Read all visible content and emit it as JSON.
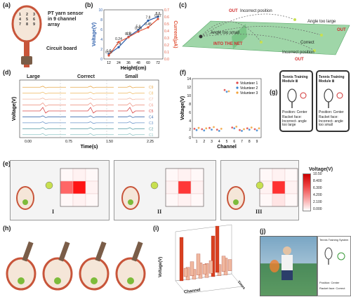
{
  "panels": {
    "a": {
      "label": "(a)",
      "sensor_text": "PT yarn sensor in 9 channel array",
      "circuit_text": "Circuit board",
      "channels": [
        "1",
        "2",
        "3",
        "4",
        "5",
        "6",
        "7",
        "8",
        "9"
      ]
    },
    "b": {
      "label": "(b)"
    },
    "c": {
      "label": "(c)",
      "out1": "OUT",
      "incorrect1": "Incorrect position",
      "angle_small": "Angle too small",
      "into_net": "INTO THE NET",
      "angle_large": "Angle too large",
      "out2": "OUT",
      "correct": "Correct",
      "incorrect2": "Incorrect position",
      "out3": "OUT"
    },
    "d": {
      "label": "(d)",
      "groups": [
        "Large",
        "Correct",
        "Small"
      ]
    },
    "f": {
      "label": "(f)"
    },
    "g": {
      "label": "(g)",
      "module": "Tennis Training Module Ⅲ",
      "position": "Position: Center",
      "face_large": "Racket face: Incorrect- angle too large",
      "face_small": "Racket face: Incorrect- angle too small"
    },
    "e": {
      "label": "(e)",
      "roman": [
        "I",
        "II",
        "III"
      ],
      "colorbar_title": "Voltage(V)",
      "colorbar_ticks": [
        "10.50",
        "8.400",
        "6.300",
        "4.200",
        "2.100",
        "0.000"
      ]
    },
    "h": {
      "label": "(h)"
    },
    "i": {
      "label": "(i)",
      "zlabel": "Voltage(V)",
      "xlabel": "Channel",
      "ylabel": "Times"
    },
    "j": {
      "label": "(j)",
      "app_title": "Tennis Training System",
      "position": "Position: Center",
      "face": "Racket face: Correct"
    }
  },
  "chart_data": [
    {
      "id": "b",
      "type": "line",
      "x": [
        12,
        24,
        36,
        48,
        60,
        72
      ],
      "xlabel": "Height(cm)",
      "ylabel": "Voltage(V)",
      "ylabel2": "Current(μA)",
      "xticks": [
        "12",
        "24",
        "36",
        "48",
        "60",
        "72"
      ],
      "series": [
        {
          "name": "Voltage",
          "axis": "left",
          "color": "#2a5caa",
          "values": [
            1.0,
            2.4,
            4.5,
            5.9,
            7.8,
            8.6
          ],
          "labels": [
            "1.0",
            "2.4",
            "4.5",
            "5.9",
            "7.8",
            "8.6"
          ]
        },
        {
          "name": "Current",
          "axis": "right",
          "color": "#e0553a",
          "values": [
            0.05,
            0.24,
            0.31,
            0.39,
            0.45,
            0.57
          ],
          "labels": [
            "0.05",
            "0.24",
            "0.31",
            "0.39",
            "0.45",
            "0.57"
          ]
        }
      ],
      "ylim": [
        0,
        10
      ],
      "y2lim": [
        0,
        0.7
      ],
      "yticks": [
        "0",
        "2",
        "4",
        "6",
        "8",
        "10"
      ],
      "y2ticks": [
        "0.0",
        "0.1",
        "0.2",
        "0.3",
        "0.4",
        "0.5",
        "0.6",
        "0.7"
      ]
    },
    {
      "id": "d",
      "type": "line",
      "xlabel": "Time(s)",
      "ylabel": "Voltage(V)",
      "xticks": [
        "0.00",
        "0.75",
        "1.50",
        "2.25"
      ],
      "channels": [
        "C9",
        "C8",
        "C7",
        "C6",
        "C5",
        "C4",
        "C3",
        "C2",
        "C1"
      ],
      "colors": [
        "#e8a84a",
        "#f0c070",
        "#f3b9a0",
        "#f09a8a",
        "#d94848",
        "#3f6fb0",
        "#6a94c8",
        "#5fa0a8",
        "#8cc4c4"
      ]
    },
    {
      "id": "f",
      "type": "scatter",
      "xlabel": "Channel",
      "ylabel": "Voltage(V)",
      "xticks": [
        "1",
        "2",
        "3",
        "4",
        "5",
        "6",
        "7",
        "8",
        "9"
      ],
      "yticks": [
        "0",
        "2",
        "4",
        "6",
        "8",
        "10",
        "12",
        "14"
      ],
      "ylim": [
        0,
        14
      ],
      "series": [
        {
          "name": "Volunteer 1",
          "color": "#e04848",
          "values": [
            2.1,
            2.0,
            2.3,
            1.9,
            11.3,
            2.4,
            1.8,
            2.2,
            2.0
          ]
        },
        {
          "name": "Volunteer 2",
          "color": "#3a86d0",
          "values": [
            1.8,
            1.7,
            1.9,
            1.6,
            10.9,
            2.2,
            1.6,
            1.9,
            1.7
          ]
        },
        {
          "name": "Volunteer 3",
          "color": "#f2a23a",
          "values": [
            2.3,
            2.2,
            2.5,
            2.1,
            11.0,
            2.6,
            2.0,
            2.4,
            2.2
          ]
        }
      ]
    },
    {
      "id": "e",
      "type": "heatmap",
      "grids": [
        [
          [
            0.3,
            0.6,
            0.3
          ],
          [
            6.8,
            10.5,
            0.6
          ],
          [
            0.3,
            0.6,
            0.3
          ]
        ],
        [
          [
            0.3,
            0.6,
            0.3
          ],
          [
            0.6,
            8.9,
            0.6
          ],
          [
            0.3,
            0.6,
            0.3
          ]
        ],
        [
          [
            0.3,
            0.6,
            0.3
          ],
          [
            0.6,
            9.2,
            0.6
          ],
          [
            0.3,
            1.2,
            0.3
          ]
        ]
      ],
      "vmax": 10.5
    }
  ]
}
